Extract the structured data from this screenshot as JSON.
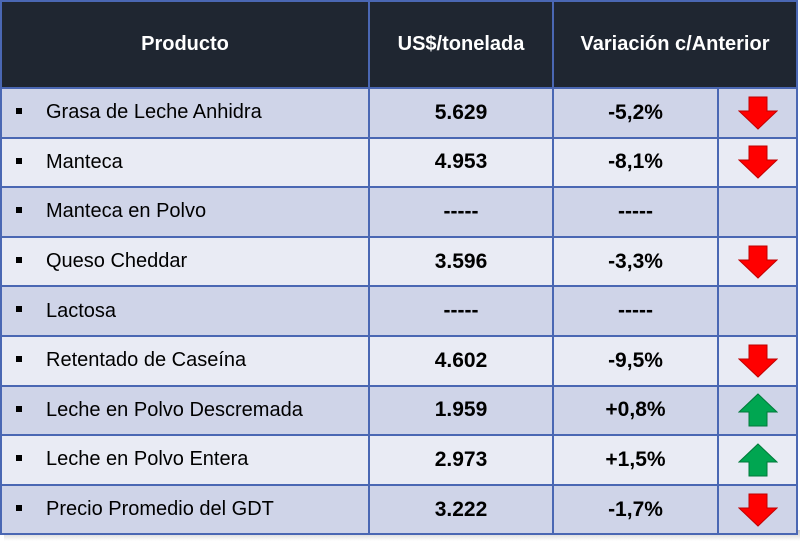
{
  "header": {
    "producto": "Producto",
    "precio": "US$/tonelada",
    "variacion": "Variación c/Anterior"
  },
  "colors": {
    "down": "#ff0000",
    "up": "#00a651",
    "header_bg": "#1f2631",
    "border": "#4a67b3"
  },
  "chart_data": {
    "type": "table",
    "columns": [
      "Producto",
      "US$/tonelada",
      "Variación c/Anterior"
    ],
    "rows": [
      {
        "producto": "Grasa de Leche Anhidra",
        "precio": "5.629",
        "variacion": "-5,2%",
        "direction": "down"
      },
      {
        "producto": "Manteca",
        "precio": "4.953",
        "variacion": "-8,1%",
        "direction": "down"
      },
      {
        "producto": "Manteca en Polvo",
        "precio": "-----",
        "variacion": "-----",
        "direction": "none"
      },
      {
        "producto": "Queso Cheddar",
        "precio": "3.596",
        "variacion": "-3,3%",
        "direction": "down"
      },
      {
        "producto": "Lactosa",
        "precio": "-----",
        "variacion": "-----",
        "direction": "none"
      },
      {
        "producto": "Retentado de Caseína",
        "precio": "4.602",
        "variacion": "-9,5%",
        "direction": "down"
      },
      {
        "producto": "Leche en Polvo Descremada",
        "precio": "1.959",
        "variacion": "+0,8%",
        "direction": "up"
      },
      {
        "producto": "Leche en Polvo Entera",
        "precio": "2.973",
        "variacion": "+1,5%",
        "direction": "up"
      },
      {
        "producto": "Precio Promedio del GDT",
        "precio": "3.222",
        "variacion": "-1,7%",
        "direction": "down"
      }
    ]
  }
}
